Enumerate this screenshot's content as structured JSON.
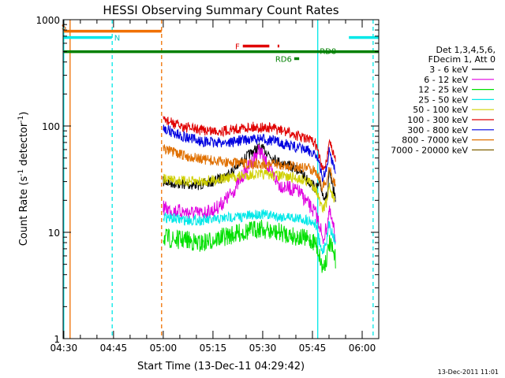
{
  "chart_data": {
    "type": "line",
    "title": "HESSI Observing Summary Count Rates",
    "xlabel": "Start Time (13-Dec-11 04:29:42)",
    "ylabel_main": "Count Rate (s",
    "ylabel_sup1": "-1",
    "ylabel_mid": " detector",
    "ylabel_sup2": "-1",
    "ylabel_end": ")",
    "y_scale": "log",
    "ylim": [
      1,
      1000
    ],
    "xlim_minutes": [
      -0.2,
      95
    ],
    "x_ticks": [
      {
        "label": "04:30",
        "min": 0
      },
      {
        "label": "04:45",
        "min": 15
      },
      {
        "label": "05:00",
        "min": 30
      },
      {
        "label": "05:15",
        "min": 45
      },
      {
        "label": "05:30",
        "min": 60
      },
      {
        "label": "05:45",
        "min": 75
      },
      {
        "label": "06:00",
        "min": 90
      }
    ],
    "y_ticks": [
      {
        "label": "1",
        "value": 1
      },
      {
        "label": "10",
        "value": 10
      },
      {
        "label": "100",
        "value": 100
      },
      {
        "label": "1000",
        "value": 1000
      }
    ],
    "legend": {
      "placement": "right",
      "header1": "Det 1,3,4,5,6,",
      "header2": "FDecim 1, Att 0"
    },
    "series": [
      {
        "name": "3 - 6 keV",
        "color": "#000000",
        "points": [
          [
            30,
            30
          ],
          [
            33,
            29
          ],
          [
            37,
            28
          ],
          [
            41,
            28
          ],
          [
            45,
            30
          ],
          [
            48,
            33
          ],
          [
            51,
            38
          ],
          [
            54,
            47
          ],
          [
            57,
            58
          ],
          [
            59,
            62
          ],
          [
            61,
            58
          ],
          [
            63,
            50
          ],
          [
            65,
            46
          ],
          [
            68,
            42
          ],
          [
            71,
            38
          ],
          [
            74,
            30
          ],
          [
            76,
            26
          ],
          [
            77.5,
            28
          ],
          [
            78,
            23
          ],
          [
            79.5,
            21
          ],
          [
            80,
            36
          ],
          [
            82,
            21
          ]
        ]
      },
      {
        "name": "6 - 12 keV",
        "color": "#e000e0",
        "points": [
          [
            30,
            17
          ],
          [
            33,
            16
          ],
          [
            37,
            15.5
          ],
          [
            41,
            15
          ],
          [
            45,
            16
          ],
          [
            48,
            19
          ],
          [
            51,
            24
          ],
          [
            54,
            34
          ],
          [
            57,
            48
          ],
          [
            59,
            60
          ],
          [
            61,
            45
          ],
          [
            63,
            35
          ],
          [
            65,
            28
          ],
          [
            68,
            26
          ],
          [
            71,
            24
          ],
          [
            74,
            18
          ],
          [
            76,
            15
          ],
          [
            77.5,
            11
          ],
          [
            78,
            8
          ],
          [
            79.5,
            12
          ],
          [
            80,
            16
          ],
          [
            82,
            9
          ]
        ]
      },
      {
        "name": "12 - 25 keV",
        "color": "#00e000",
        "points": [
          [
            30,
            9
          ],
          [
            33,
            8.5
          ],
          [
            37,
            8.5
          ],
          [
            41,
            7.8
          ],
          [
            45,
            8.5
          ],
          [
            48,
            9
          ],
          [
            51,
            9.5
          ],
          [
            54,
            10
          ],
          [
            57,
            10.5
          ],
          [
            59,
            11
          ],
          [
            61,
            10.5
          ],
          [
            63,
            10
          ],
          [
            65,
            10
          ],
          [
            68,
            9.5
          ],
          [
            71,
            9
          ],
          [
            74,
            8.5
          ],
          [
            76,
            8
          ],
          [
            77.5,
            5.5
          ],
          [
            78,
            4.5
          ],
          [
            79.5,
            6
          ],
          [
            80,
            8
          ],
          [
            82,
            5.5
          ]
        ]
      },
      {
        "name": "25 - 50 keV",
        "color": "#00e8e8",
        "points": [
          [
            30,
            14
          ],
          [
            33,
            13.5
          ],
          [
            37,
            13
          ],
          [
            41,
            13
          ],
          [
            45,
            13
          ],
          [
            48,
            13.5
          ],
          [
            51,
            14
          ],
          [
            54,
            14
          ],
          [
            57,
            14.5
          ],
          [
            59,
            15
          ],
          [
            61,
            14.5
          ],
          [
            63,
            14.5
          ],
          [
            65,
            14
          ],
          [
            68,
            14
          ],
          [
            71,
            13.5
          ],
          [
            74,
            13
          ],
          [
            76,
            12
          ],
          [
            77.5,
            7
          ],
          [
            78,
            6.5
          ],
          [
            79.5,
            9
          ],
          [
            80,
            12
          ],
          [
            82,
            8
          ]
        ]
      },
      {
        "name": "50 - 100 keV",
        "color": "#d0d000",
        "points": [
          [
            30,
            32
          ],
          [
            33,
            31
          ],
          [
            37,
            30
          ],
          [
            41,
            30
          ],
          [
            45,
            31
          ],
          [
            48,
            32
          ],
          [
            51,
            33
          ],
          [
            54,
            34
          ],
          [
            57,
            35
          ],
          [
            59,
            35
          ],
          [
            61,
            35
          ],
          [
            63,
            34.5
          ],
          [
            65,
            34
          ],
          [
            68,
            33
          ],
          [
            71,
            32
          ],
          [
            74,
            30
          ],
          [
            76,
            26
          ],
          [
            77.5,
            18
          ],
          [
            78,
            16
          ],
          [
            79.5,
            20
          ],
          [
            80,
            28
          ],
          [
            82,
            18
          ]
        ]
      },
      {
        "name": "100 - 300 keV",
        "color": "#e00000",
        "points": [
          [
            30,
            118
          ],
          [
            33,
            105
          ],
          [
            37,
            97
          ],
          [
            41,
            92
          ],
          [
            45,
            90
          ],
          [
            48,
            90
          ],
          [
            51,
            93
          ],
          [
            54,
            96
          ],
          [
            57,
            98
          ],
          [
            59,
            97
          ],
          [
            61,
            96
          ],
          [
            63,
            95
          ],
          [
            65,
            92
          ],
          [
            68,
            86
          ],
          [
            71,
            80
          ],
          [
            74,
            74
          ],
          [
            76,
            68
          ],
          [
            77.5,
            45
          ],
          [
            78,
            38
          ],
          [
            79.5,
            50
          ],
          [
            80,
            75
          ],
          [
            82,
            46
          ]
        ]
      },
      {
        "name": "300 - 800 keV",
        "color": "#0000e0",
        "points": [
          [
            30,
            97
          ],
          [
            33,
            86
          ],
          [
            37,
            78
          ],
          [
            41,
            72
          ],
          [
            45,
            70
          ],
          [
            48,
            70
          ],
          [
            51,
            71
          ],
          [
            54,
            74
          ],
          [
            57,
            75
          ],
          [
            59,
            75
          ],
          [
            61,
            74
          ],
          [
            63,
            73
          ],
          [
            65,
            70
          ],
          [
            68,
            66
          ],
          [
            71,
            62
          ],
          [
            74,
            58
          ],
          [
            76,
            55
          ],
          [
            77.5,
            38
          ],
          [
            78,
            32
          ],
          [
            79.5,
            42
          ],
          [
            80,
            58
          ],
          [
            82,
            38
          ]
        ]
      },
      {
        "name": "800 - 7000 keV",
        "color": "#e07000",
        "points": [
          [
            30,
            62
          ],
          [
            33,
            56
          ],
          [
            37,
            52
          ],
          [
            41,
            49
          ],
          [
            45,
            47
          ],
          [
            48,
            46
          ],
          [
            51,
            45
          ],
          [
            54,
            44
          ],
          [
            57,
            44
          ],
          [
            59,
            44
          ],
          [
            61,
            44
          ],
          [
            63,
            43.5
          ],
          [
            65,
            43
          ],
          [
            68,
            42
          ],
          [
            71,
            41
          ],
          [
            74,
            40
          ],
          [
            76,
            38
          ],
          [
            77.5,
            30
          ],
          [
            78,
            26
          ],
          [
            79.5,
            32
          ],
          [
            80,
            40
          ],
          [
            82,
            28
          ]
        ]
      },
      {
        "name": "7000 - 20000 keV",
        "color": "#806000",
        "points": []
      }
    ],
    "flag_lines": [
      {
        "label": "S",
        "color": "#f07000",
        "label_color": "#e06000",
        "value": 780,
        "x_start": 0,
        "x_end": 29.5
      },
      {
        "label": "N",
        "color": "#00e8e8",
        "label_color": "#00c8c8",
        "value": 680,
        "x_start": 0,
        "x_end": 14.5
      },
      {
        "label": "",
        "color": "#00e8e8",
        "label_color": "#00c8c8",
        "value": 680,
        "x_start": 86,
        "x_end": 95
      },
      {
        "label": "F",
        "color": "#e00000",
        "label_color": "#e00000",
        "value": 565,
        "x_start": 54,
        "x_end": 62
      },
      {
        "label": "",
        "color": "#e00000",
        "label_color": "#e00000",
        "value": 565,
        "x_start": 64.5,
        "x_end": 65
      },
      {
        "label": "RD8",
        "color": "#008000",
        "label_color": "#008000",
        "value": 500,
        "x_start": 0,
        "x_end": 95
      },
      {
        "label": "RD6",
        "color": "#008000",
        "label_color": "#008000",
        "value": 430,
        "x_start": 69.5,
        "x_end": 71
      }
    ],
    "vertical_markers": [
      {
        "color": "#00e8e8",
        "min": 0,
        "style": "solid"
      },
      {
        "color": "#f07000",
        "min": 1.9,
        "style": "solid"
      },
      {
        "color": "#00e8e8",
        "min": 14.6,
        "style": "dashed"
      },
      {
        "color": "#f07000",
        "min": 29.5,
        "style": "dashed"
      },
      {
        "color": "#00e8e8",
        "min": 76.6,
        "style": "solid"
      },
      {
        "color": "#00e8e8",
        "min": 93.3,
        "style": "dashed"
      }
    ],
    "colors": {
      "axes": "#000000",
      "background": "#ffffff"
    }
  },
  "footer": {
    "date_stamp": "13-Dec-2011 11:01"
  }
}
